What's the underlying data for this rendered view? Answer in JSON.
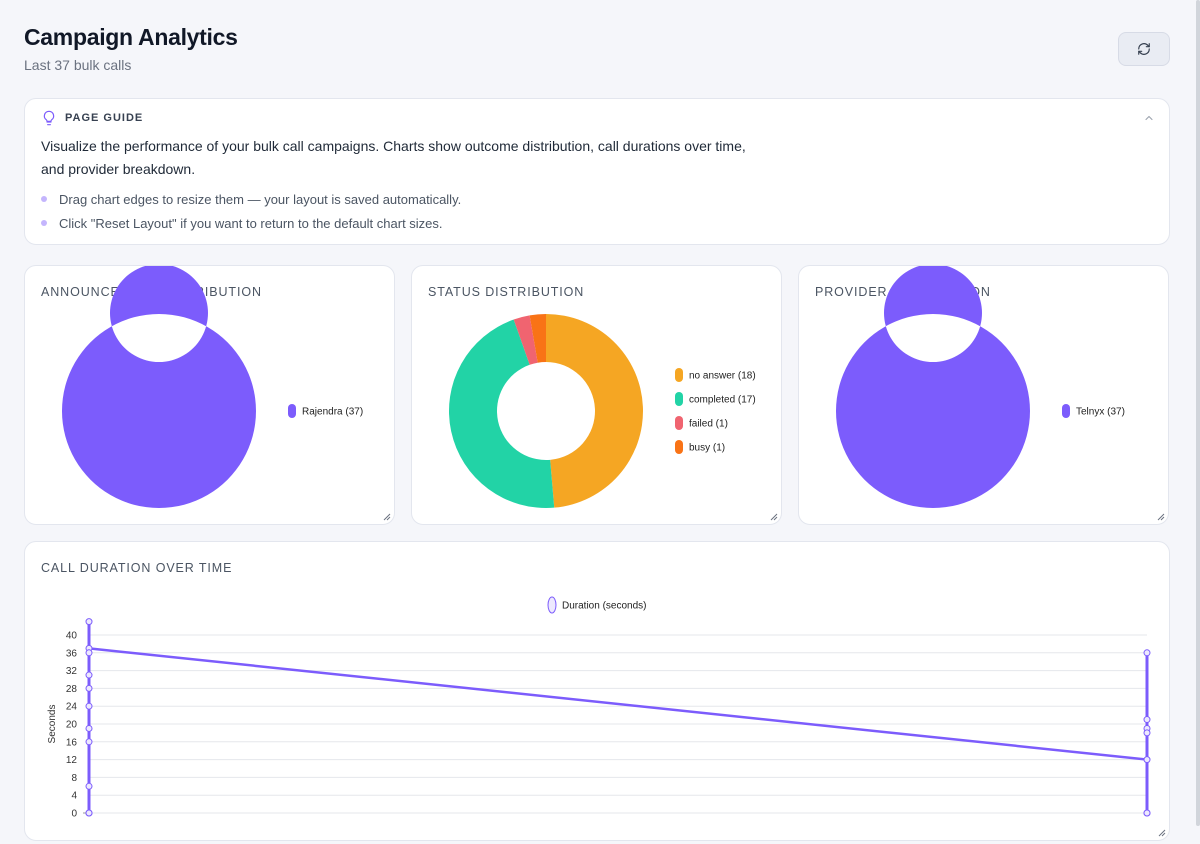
{
  "header": {
    "title": "Campaign Analytics",
    "subtitle": "Last 37 bulk calls",
    "refresh_icon": "refresh-icon"
  },
  "guide": {
    "title": "PAGE GUIDE",
    "icon": "lightbulb-icon",
    "description": "Visualize the performance of your bulk call campaigns. Charts show outcome distribution, call durations over time, and provider breakdown.",
    "tips": [
      "Drag chart edges to resize them — your layout is saved automatically.",
      "Click \"Reset Layout\" if you want to return to the default chart sizes."
    ]
  },
  "cards": {
    "announcement": "ANNOUNCEMENT DISTRIBUTION",
    "status": "STATUS DISTRIBUTION",
    "provider": "PROVIDER DISTRIBUTION",
    "duration": "CALL DURATION OVER TIME"
  },
  "chart_data": [
    {
      "type": "pie",
      "title": "ANNOUNCEMENT DISTRIBUTION",
      "slices": [
        {
          "label": "Rajendra (37)",
          "value": 37,
          "color": "#7c5cfc"
        }
      ]
    },
    {
      "type": "pie",
      "title": "STATUS DISTRIBUTION",
      "slices": [
        {
          "label": "no answer (18)",
          "value": 18,
          "color": "#f5a623"
        },
        {
          "label": "completed (17)",
          "value": 17,
          "color": "#22d3a6"
        },
        {
          "label": "failed (1)",
          "value": 1,
          "color": "#f06470"
        },
        {
          "label": "busy (1)",
          "value": 1,
          "color": "#f97316"
        }
      ]
    },
    {
      "type": "pie",
      "title": "PROVIDER DISTRIBUTION",
      "slices": [
        {
          "label": "Telnyx (37)",
          "value": 37,
          "color": "#7c5cfc"
        }
      ]
    },
    {
      "type": "line",
      "title": "CALL DURATION OVER TIME",
      "ylabel": "Seconds",
      "ylim": [
        0,
        40
      ],
      "yticks": [
        0,
        4,
        8,
        12,
        16,
        20,
        24,
        28,
        32,
        36,
        40
      ],
      "series": [
        {
          "name": "Duration (seconds)",
          "color": "#7c5cfc"
        }
      ],
      "groups": [
        {
          "values": [
            43,
            37,
            36,
            31,
            28,
            24,
            19,
            16,
            6,
            0,
            0
          ]
        },
        {
          "values": [
            36,
            21,
            19,
            18,
            12,
            0,
            0
          ]
        }
      ],
      "line_values": [
        37,
        12
      ]
    }
  ]
}
